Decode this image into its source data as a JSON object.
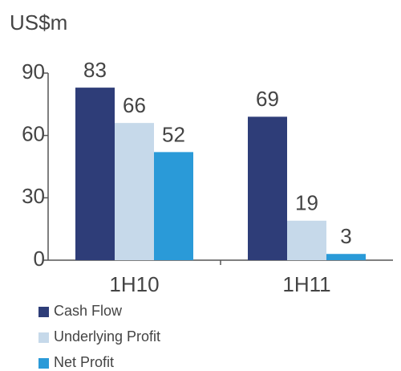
{
  "chart_data": {
    "type": "bar",
    "y_label": "US$m",
    "categories": [
      "1H10",
      "1H11"
    ],
    "series": [
      {
        "name": "Cash Flow",
        "color": "#2e3d78",
        "values": [
          83,
          69
        ]
      },
      {
        "name": "Underlying Profit",
        "color": "#c6d9ea",
        "values": [
          66,
          19
        ]
      },
      {
        "name": "Net Profit",
        "color": "#2a9ad8",
        "values": [
          52,
          3
        ]
      }
    ],
    "ylim": [
      0,
      90
    ],
    "yticks": [
      0,
      30,
      60,
      90
    ],
    "legend": "bottom"
  }
}
